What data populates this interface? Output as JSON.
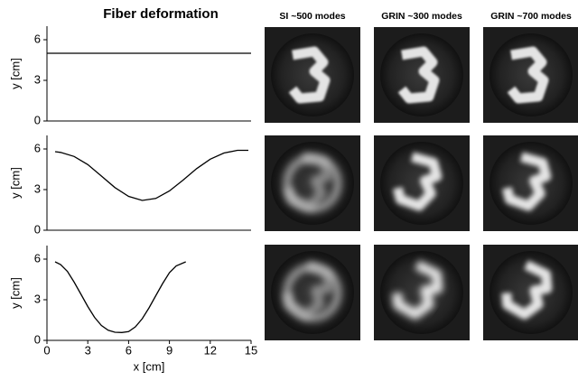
{
  "chart_data": [
    {
      "type": "line",
      "title": "Fiber deformation",
      "y_label": "y [cm]",
      "color": "#000000",
      "x": [
        0,
        15
      ],
      "values": [
        5,
        5
      ],
      "xlim": [
        0,
        15
      ],
      "ylim": [
        0,
        7
      ],
      "yticks": [
        0,
        3,
        6
      ],
      "grid": false
    },
    {
      "type": "line",
      "y_label": "y [cm]",
      "color": "#000000",
      "x": [
        0.6,
        1,
        2,
        3,
        4,
        5,
        6,
        7,
        8,
        9,
        10,
        11,
        12,
        13,
        14,
        14.8
      ],
      "values": [
        5.8,
        5.75,
        5.45,
        4.85,
        4.0,
        3.15,
        2.5,
        2.2,
        2.35,
        2.9,
        3.7,
        4.55,
        5.25,
        5.7,
        5.9,
        5.9
      ],
      "xlim": [
        0,
        15
      ],
      "ylim": [
        0,
        7
      ],
      "yticks": [
        0,
        3,
        6
      ],
      "grid": false
    },
    {
      "type": "line",
      "y_label": "y [cm]",
      "x_label": "x [cm]",
      "color": "#000000",
      "x": [
        0.6,
        1,
        1.5,
        2,
        2.5,
        3,
        3.5,
        4,
        4.5,
        5,
        5.5,
        6,
        6.5,
        7,
        7.5,
        8,
        8.5,
        9,
        9.5,
        10.2
      ],
      "values": [
        5.8,
        5.6,
        5.1,
        4.3,
        3.4,
        2.5,
        1.7,
        1.1,
        0.75,
        0.6,
        0.58,
        0.65,
        1.0,
        1.6,
        2.4,
        3.3,
        4.2,
        5.0,
        5.5,
        5.8
      ],
      "xlim": [
        0,
        15
      ],
      "ylim": [
        0,
        7
      ],
      "xticks": [
        0,
        3,
        6,
        9,
        12,
        15
      ],
      "yticks": [
        0,
        3,
        6
      ],
      "grid": false
    }
  ],
  "image_grid": {
    "column_titles": [
      "SI ~500 modes",
      "GRIN ~300 modes",
      "GRIN ~700 modes"
    ]
  }
}
